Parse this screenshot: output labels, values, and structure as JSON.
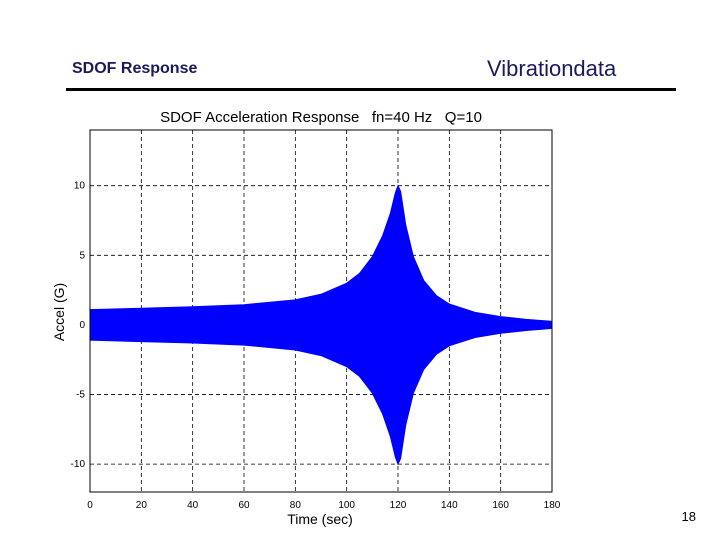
{
  "slide": {
    "header_left": "SDOF Response",
    "header_right": "Vibrationdata",
    "page_number": "18"
  },
  "chart_data": {
    "type": "area",
    "title": "SDOF Acceleration Response   fn=40 Hz   Q=10",
    "xlabel": "Time (sec)",
    "ylabel": "Accel (G)",
    "xlim": [
      0,
      180
    ],
    "ylim": [
      -12,
      14
    ],
    "xticks": [
      "0",
      "20",
      "40",
      "60",
      "80",
      "100",
      "120",
      "140",
      "160",
      "180"
    ],
    "yticks": [
      "10",
      "5",
      "0",
      "-5",
      "-10"
    ],
    "grid": true,
    "fill_color": "#0000ff",
    "series": [
      {
        "x": [
          0,
          20,
          40,
          60,
          80,
          90,
          100,
          105,
          110,
          114,
          117,
          119,
          120,
          121,
          123,
          126,
          130,
          135,
          140,
          150,
          160,
          170,
          180
        ],
        "upper": [
          1.1,
          1.2,
          1.3,
          1.45,
          1.8,
          2.2,
          3.0,
          3.7,
          4.9,
          6.4,
          8.0,
          9.5,
          10.0,
          9.6,
          7.2,
          4.9,
          3.2,
          2.1,
          1.5,
          0.9,
          0.6,
          0.4,
          0.25
        ],
        "lower": [
          -1.1,
          -1.2,
          -1.3,
          -1.45,
          -1.8,
          -2.2,
          -3.0,
          -3.7,
          -4.9,
          -6.4,
          -8.0,
          -9.5,
          -10.0,
          -9.6,
          -7.2,
          -4.9,
          -3.2,
          -2.1,
          -1.5,
          -0.9,
          -0.6,
          -0.4,
          -0.25
        ]
      }
    ]
  }
}
